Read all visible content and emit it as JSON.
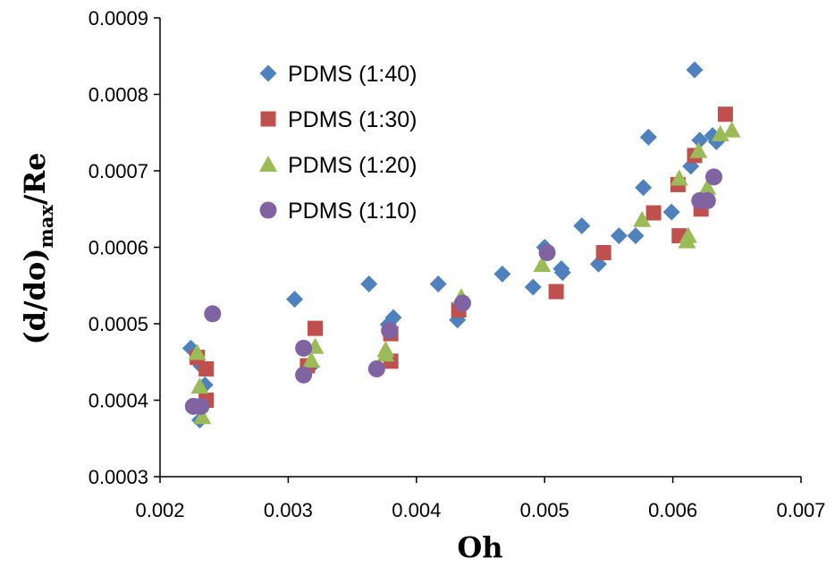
{
  "chart_data": {
    "type": "scatter",
    "xlabel": "Oh",
    "ylabel": {
      "main": "(d/do)",
      "sub": "max",
      "tail": "/Re"
    },
    "xlim": [
      0.002,
      0.007
    ],
    "ylim": [
      0.0003,
      0.0009
    ],
    "x_ticks": [
      "0.002",
      "0.003",
      "0.004",
      "0.005",
      "0.006",
      "0.007"
    ],
    "y_ticks": [
      "0.0003",
      "0.0004",
      "0.0005",
      "0.0006",
      "0.0007",
      "0.0008",
      "0.0009"
    ],
    "grid": false,
    "legend_position": "top-left",
    "series": [
      {
        "name": "PDMS (1:40)",
        "marker": "diamond",
        "color": "#4F81BD",
        "points": [
          [
            0.00224,
            0.000468
          ],
          [
            0.00232,
            0.000445
          ],
          [
            0.00235,
            0.00042
          ],
          [
            0.00231,
            0.000374
          ],
          [
            0.00305,
            0.000532
          ],
          [
            0.00317,
            0.000443
          ],
          [
            0.00363,
            0.000552
          ],
          [
            0.00378,
            0.000499
          ],
          [
            0.00382,
            0.000508
          ],
          [
            0.00417,
            0.000552
          ],
          [
            0.00432,
            0.000505
          ],
          [
            0.00467,
            0.000565
          ],
          [
            0.00491,
            0.000548
          ],
          [
            0.005,
            0.0006
          ],
          [
            0.00513,
            0.000572
          ],
          [
            0.00514,
            0.000567
          ],
          [
            0.00529,
            0.000628
          ],
          [
            0.00542,
            0.000578
          ],
          [
            0.00558,
            0.000615
          ],
          [
            0.00571,
            0.000615
          ],
          [
            0.00577,
            0.000678
          ],
          [
            0.00581,
            0.000744
          ],
          [
            0.00599,
            0.000646
          ],
          [
            0.00614,
            0.000706
          ],
          [
            0.00617,
            0.000832
          ],
          [
            0.00621,
            0.00074
          ],
          [
            0.00631,
            0.000746
          ],
          [
            0.00634,
            0.000738
          ]
        ]
      },
      {
        "name": "PDMS (1:30)",
        "marker": "square",
        "color": "#C0504D",
        "points": [
          [
            0.00229,
            0.000456
          ],
          [
            0.00236,
            0.000441
          ],
          [
            0.00236,
            0.0004
          ],
          [
            0.00315,
            0.000445
          ],
          [
            0.00321,
            0.000494
          ],
          [
            0.0038,
            0.000487
          ],
          [
            0.0038,
            0.000451
          ],
          [
            0.00433,
            0.000518
          ],
          [
            0.00509,
            0.000542
          ],
          [
            0.00546,
            0.000593
          ],
          [
            0.00585,
            0.000645
          ],
          [
            0.00604,
            0.000682
          ],
          [
            0.00605,
            0.000615
          ],
          [
            0.00617,
            0.00072
          ],
          [
            0.00622,
            0.00065
          ],
          [
            0.00641,
            0.000774
          ]
        ]
      },
      {
        "name": "PDMS (1:20)",
        "marker": "triangle",
        "color": "#9BBB59",
        "points": [
          [
            0.00229,
            0.000462
          ],
          [
            0.00231,
            0.000418
          ],
          [
            0.00233,
            0.000378
          ],
          [
            0.00318,
            0.000452
          ],
          [
            0.00321,
            0.00047
          ],
          [
            0.00376,
            0.00046
          ],
          [
            0.00376,
            0.000466
          ],
          [
            0.00435,
            0.000535
          ],
          [
            0.00498,
            0.000577
          ],
          [
            0.00576,
            0.000636
          ],
          [
            0.00605,
            0.00069
          ],
          [
            0.00611,
            0.000608
          ],
          [
            0.00612,
            0.000615
          ],
          [
            0.0062,
            0.000726
          ],
          [
            0.00627,
            0.000678
          ],
          [
            0.00637,
            0.000748
          ],
          [
            0.00646,
            0.000753
          ]
        ]
      },
      {
        "name": "PDMS (1:10)",
        "marker": "circle",
        "color": "#8064A2",
        "points": [
          [
            0.00241,
            0.000513
          ],
          [
            0.00226,
            0.000392
          ],
          [
            0.00232,
            0.000392
          ],
          [
            0.00312,
            0.000468
          ],
          [
            0.00312,
            0.000433
          ],
          [
            0.00369,
            0.000441
          ],
          [
            0.00379,
            0.000491
          ],
          [
            0.00436,
            0.000527
          ],
          [
            0.00502,
            0.000593
          ],
          [
            0.00621,
            0.000661
          ],
          [
            0.00627,
            0.000661
          ],
          [
            0.00632,
            0.000692
          ]
        ]
      }
    ]
  }
}
